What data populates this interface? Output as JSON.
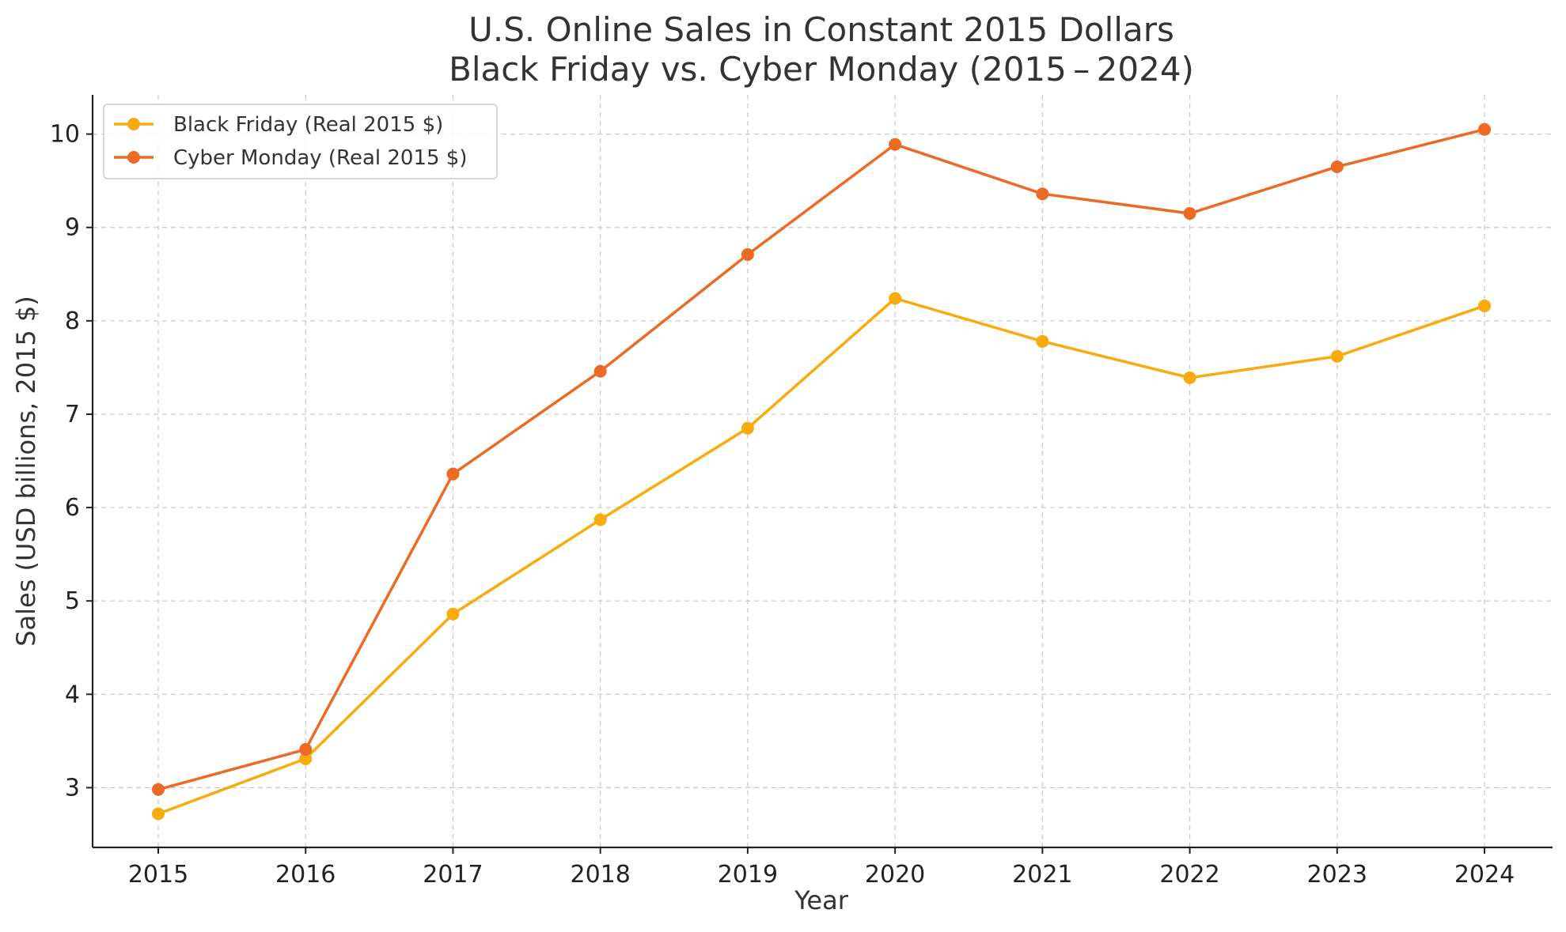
{
  "chart_data": {
    "type": "line",
    "title": "U.S. Online Sales in Constant 2015 Dollars",
    "subtitle": "Black Friday vs. Cyber Monday (2015 – 2024)",
    "xlabel": "Year",
    "ylabel": "Sales (USD billions, 2015 $)",
    "x": [
      "2015",
      "2016",
      "2017",
      "2018",
      "2019",
      "2020",
      "2021",
      "2022",
      "2023",
      "2024"
    ],
    "yticks": [
      "3",
      "4",
      "5",
      "6",
      "7",
      "8",
      "9",
      "10"
    ],
    "ylim": [
      2.36,
      10.42
    ],
    "grid": true,
    "legend_position": "top-left",
    "series": [
      {
        "name": "Black Friday (Real 2015 $)",
        "color": "#F7AB0C",
        "values": [
          2.72,
          3.31,
          4.86,
          5.87,
          6.85,
          8.24,
          7.78,
          7.39,
          7.62,
          8.16
        ]
      },
      {
        "name": "Cyber Monday (Real 2015 $)",
        "color": "#EC6A24",
        "values": [
          2.98,
          3.41,
          6.36,
          7.46,
          8.71,
          9.89,
          9.36,
          9.15,
          9.65,
          10.05
        ]
      }
    ]
  }
}
